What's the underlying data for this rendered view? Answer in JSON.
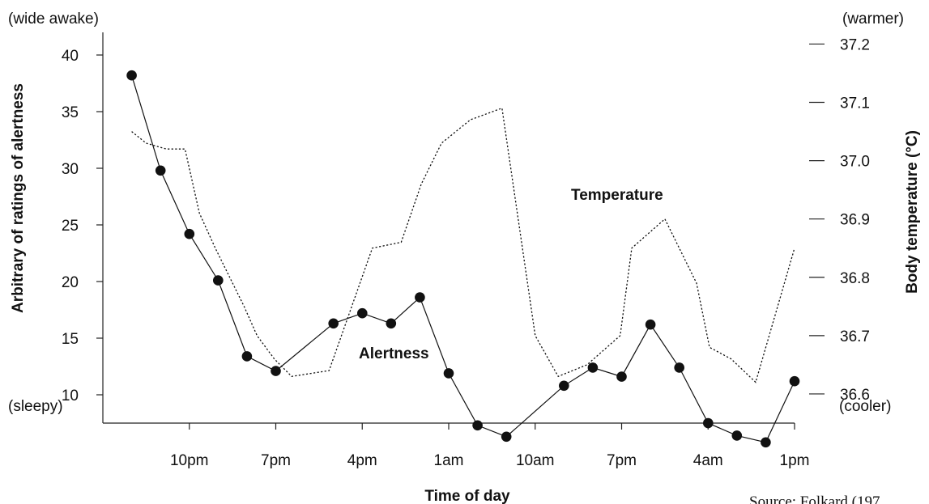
{
  "chart_data": {
    "type": "line",
    "title": "",
    "xlabel": "Time of day",
    "ylabel_left": "Arbitrary of ratings of alertness",
    "ylabel_right": "Body temperature (°C)",
    "left_top_note": "(wide awake)",
    "left_bottom_note": "(sleepy)",
    "right_top_note": "(warmer)",
    "right_bottom_note": "(cooler)",
    "source_text": "Source: Folkard (197",
    "x_ticks": [
      "10pm",
      "7pm",
      "4pm",
      "1am",
      "10am",
      "7pm",
      "4am",
      "1pm"
    ],
    "x_tick_positions": [
      3,
      6,
      9,
      12,
      15,
      18,
      21,
      24
    ],
    "xlim": [
      0,
      24
    ],
    "left_axis": {
      "ticks": [
        10,
        15,
        20,
        25,
        30,
        35,
        40
      ],
      "ylim": [
        7.5,
        42
      ]
    },
    "right_axis": {
      "ticks": [
        "36.6",
        "36.7",
        "36.8",
        "36.9",
        "37.0",
        "37.1",
        "37.2"
      ],
      "ylim": [
        36.55,
        37.22
      ]
    },
    "series": [
      {
        "name": "Alertness",
        "style": "solid-with-dots",
        "color": "#111111",
        "x": [
          1,
          2,
          3,
          4,
          5,
          6,
          8,
          9,
          10,
          11,
          12,
          13,
          14,
          16,
          17,
          18,
          19,
          20,
          21,
          22,
          23,
          24
        ],
        "values": [
          38.2,
          29.8,
          24.2,
          20.1,
          13.4,
          12.1,
          16.3,
          17.2,
          16.3,
          18.6,
          11.9,
          7.3,
          6.3,
          10.8,
          12.4,
          11.6,
          16.2,
          12.4,
          7.5,
          6.4,
          5.8,
          11.2
        ]
      },
      {
        "name": "Temperature",
        "style": "dotted",
        "color": "#111111",
        "x": [
          1,
          1.5,
          2.2,
          2.85,
          3.35,
          3.9,
          4.9,
          5.35,
          5.95,
          6.55,
          7.85,
          8.35,
          9.35,
          10.35,
          11.05,
          11.75,
          12.75,
          13.85,
          15.0,
          15.8,
          16.8,
          17.95,
          18.35,
          19.5,
          20.6,
          21.05,
          21.8,
          22.65,
          24.0
        ],
        "values": [
          37.05,
          37.03,
          37.02,
          37.02,
          36.91,
          36.85,
          36.75,
          36.7,
          36.66,
          36.63,
          36.64,
          36.71,
          36.85,
          36.86,
          36.96,
          37.03,
          37.07,
          37.09,
          36.7,
          36.63,
          36.65,
          36.7,
          36.85,
          36.9,
          36.79,
          36.68,
          36.66,
          36.62,
          36.85
        ]
      }
    ],
    "series_labels": {
      "temperature": "Temperature",
      "alertness": "Alertness"
    }
  }
}
